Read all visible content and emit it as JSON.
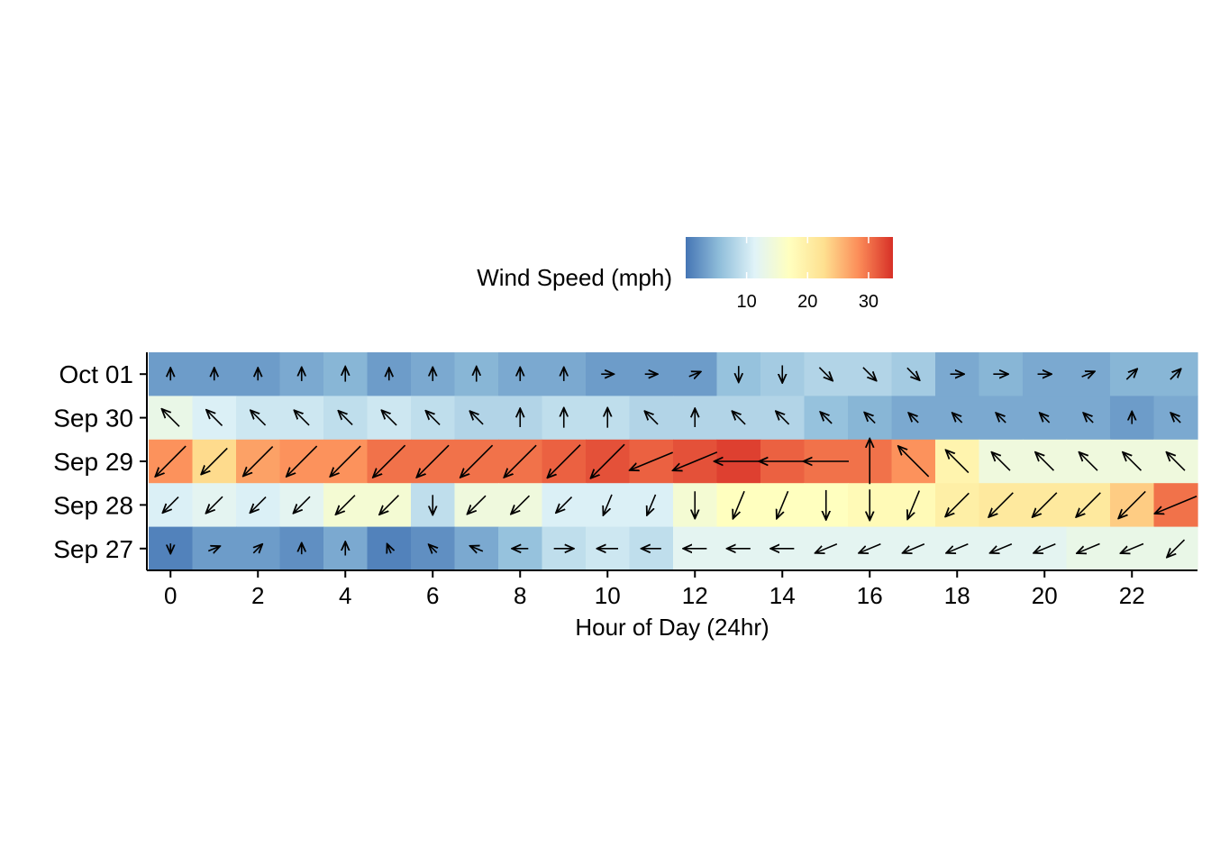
{
  "chart_data": {
    "type": "heatmap",
    "title": "",
    "xlabel": "Hour of Day (24hr)",
    "ylabel": "",
    "x": [
      0,
      1,
      2,
      3,
      4,
      5,
      6,
      7,
      8,
      9,
      10,
      11,
      12,
      13,
      14,
      15,
      16,
      17,
      18,
      19,
      20,
      21,
      22,
      23
    ],
    "xlim": [
      -0.5,
      23.5
    ],
    "x_ticks": [
      0,
      2,
      4,
      6,
      8,
      10,
      12,
      14,
      16,
      18,
      20,
      22
    ],
    "x_tick_labels": [
      "0",
      "2",
      "4",
      "6",
      "8",
      "10",
      "12",
      "14",
      "16",
      "18",
      "20",
      "22"
    ],
    "y_categories": [
      "Sep 27",
      "Sep 28",
      "Sep 29",
      "Sep 30",
      "Oct 01"
    ],
    "grid": false,
    "legend": {
      "title": "Wind Speed (mph)",
      "placement": "top",
      "range": [
        0,
        34
      ],
      "ticks": [
        10,
        20,
        30
      ],
      "tick_labels": [
        "10",
        "20",
        "30"
      ],
      "colors": [
        "#4575b4",
        "#91bfdb",
        "#e0f3f8",
        "#ffffbf",
        "#fee090",
        "#fc8d59",
        "#d73027"
      ]
    },
    "wind_speed_mph": {
      "Sep 27": [
        1,
        3,
        3,
        2,
        4,
        1,
        2,
        4,
        6,
        9,
        10,
        9,
        12,
        12,
        12,
        12,
        12,
        12,
        12,
        12,
        12,
        13,
        13,
        13
      ],
      "Sep 28": [
        11,
        12,
        11,
        12,
        15,
        15,
        9,
        14,
        14,
        11,
        11,
        11,
        15,
        17,
        17,
        17,
        18,
        18,
        20,
        21,
        21,
        21,
        24,
        30
      ],
      "Sep 29": [
        28,
        23,
        27,
        28,
        28,
        30,
        30,
        30,
        30,
        31,
        32,
        31,
        32,
        33,
        31,
        30,
        30,
        28,
        19,
        14,
        14,
        14,
        14,
        14
      ],
      "Sep 30": [
        13,
        11,
        10,
        10,
        9,
        10,
        9,
        8,
        8,
        9,
        9,
        8,
        8,
        8,
        8,
        6,
        5,
        4,
        4,
        4,
        4,
        4,
        3,
        4
      ],
      "Oct 01": [
        3,
        3,
        3,
        4,
        5,
        3,
        4,
        5,
        4,
        4,
        3,
        3,
        3,
        6,
        7,
        8,
        8,
        7,
        4,
        5,
        4,
        4,
        5,
        5
      ]
    },
    "wind_direction_arrows": {
      "description_of_encoding": "",
      "Sep 27": [
        "S",
        "ENE",
        "NE",
        "N",
        "N",
        "NNW",
        "NW",
        "WNW",
        "W",
        "E",
        "W",
        "W",
        "W",
        "W",
        "W",
        "WSW",
        "WSW",
        "WSW",
        "WSW",
        "WSW",
        "WSW",
        "WSW",
        "WSW",
        "SW"
      ],
      "Sep 28": [
        "SW",
        "SW",
        "SW",
        "SW",
        "SW",
        "SW",
        "S",
        "SW",
        "SW",
        "SW",
        "SSW",
        "SSW",
        "S",
        "SSW",
        "SSW",
        "S",
        "S",
        "SSW",
        "SW",
        "SW",
        "SW",
        "SW",
        "SW",
        "WSW"
      ],
      "Sep 29": [
        "SW",
        "SW",
        "SW",
        "SW",
        "SW",
        "SW",
        "SW",
        "SW",
        "SW",
        "SW",
        "SW",
        "WSW",
        "WSW",
        "W",
        "W",
        "W",
        "N",
        "NW",
        "NW",
        "NW",
        "NW",
        "NW",
        "NW",
        "NW"
      ],
      "Sep 30": [
        "NW",
        "NW",
        "NW",
        "NW",
        "NW",
        "NW",
        "NW",
        "NW",
        "N",
        "N",
        "N",
        "NW",
        "N",
        "NW",
        "NW",
        "NW",
        "NW",
        "NW",
        "NW",
        "NW",
        "NW",
        "NW",
        "N",
        "NW"
      ],
      "Oct 01": [
        "N",
        "N",
        "N",
        "N",
        "N",
        "N",
        "N",
        "N",
        "N",
        "N",
        "E",
        "E",
        "ENE",
        "S",
        "S",
        "SE",
        "SE",
        "SE",
        "E",
        "E",
        "E",
        "ENE",
        "NE",
        "NE"
      ]
    }
  }
}
